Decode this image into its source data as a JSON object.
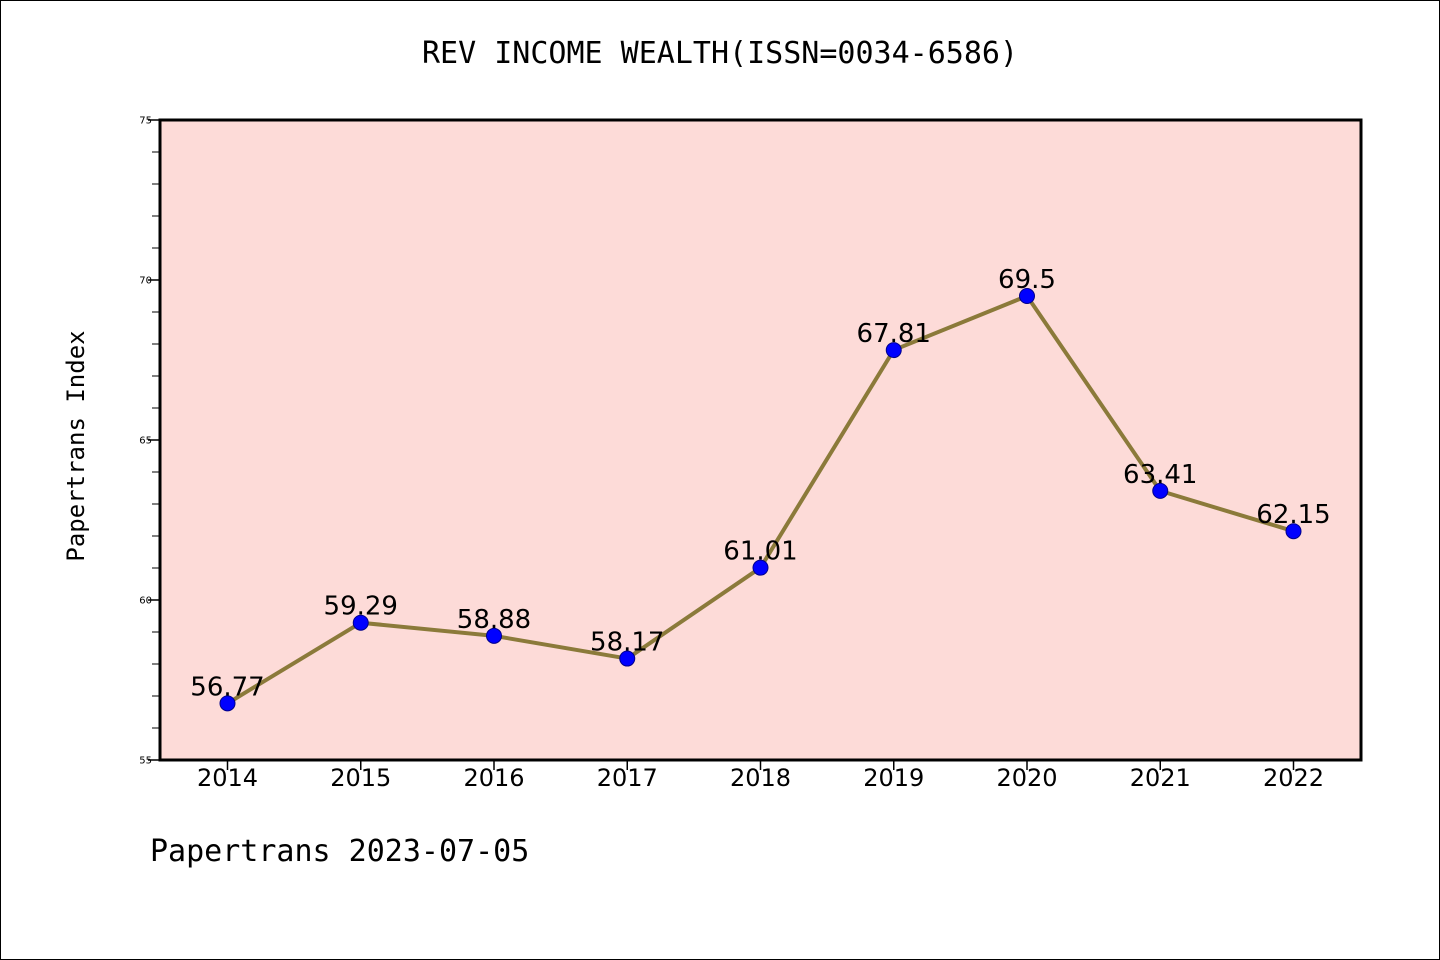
{
  "chart_data": {
    "type": "line",
    "title": "REV INCOME WEALTH(ISSN=0034-6586)",
    "xlabel": "",
    "ylabel": "Papertrans Index",
    "x": [
      "2014",
      "2015",
      "2016",
      "2017",
      "2018",
      "2019",
      "2020",
      "2021",
      "2022"
    ],
    "series": [
      {
        "values": [
          56.77,
          59.29,
          58.88,
          58.17,
          61.01,
          67.81,
          69.5,
          63.41,
          62.15
        ],
        "data_labels": [
          "56.77",
          "59.29",
          "58.88",
          "58.17",
          "61.01",
          "67.81",
          "69.5",
          "63.41",
          "62.15"
        ]
      }
    ],
    "ylim": [
      55,
      75
    ],
    "yticks": [
      "55",
      "60",
      "65",
      "70",
      "75"
    ],
    "grid": false,
    "legend": "none",
    "colors": {
      "plot_background": "#fddbd8",
      "line": "#8b7a3a",
      "marker_fill": "#0000ff",
      "marker_edge": "#00008b",
      "axis": "#000000"
    }
  },
  "footer": {
    "note": "Papertrans 2023-07-05"
  }
}
